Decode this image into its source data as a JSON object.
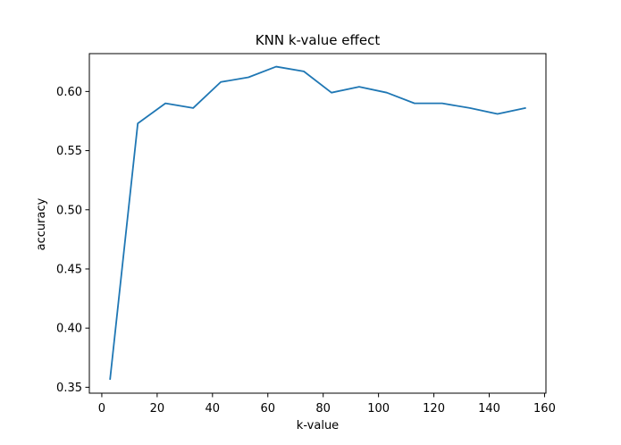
{
  "chart_data": {
    "type": "line",
    "title": "KNN k-value effect",
    "xlabel": "k-value",
    "ylabel": "accuracy",
    "xlim": [
      -4.5,
      160.5
    ],
    "ylim": [
      0.345,
      0.632
    ],
    "x_ticks": [
      0,
      20,
      40,
      60,
      80,
      100,
      120,
      140,
      160
    ],
    "y_ticks": [
      0.35,
      0.4,
      0.45,
      0.5,
      0.55,
      0.6
    ],
    "y_tick_labels": [
      "0.35",
      "0.40",
      "0.45",
      "0.50",
      "0.55",
      "0.60"
    ],
    "grid": false,
    "series": [
      {
        "color": "#1f77b4",
        "x": [
          3,
          13,
          23,
          33,
          43,
          53,
          63,
          73,
          83,
          93,
          103,
          113,
          123,
          133,
          143,
          153
        ],
        "y": [
          0.357,
          0.573,
          0.59,
          0.586,
          0.608,
          0.612,
          0.621,
          0.617,
          0.599,
          0.604,
          0.599,
          0.59,
          0.59,
          0.586,
          0.581,
          0.586
        ]
      }
    ]
  }
}
